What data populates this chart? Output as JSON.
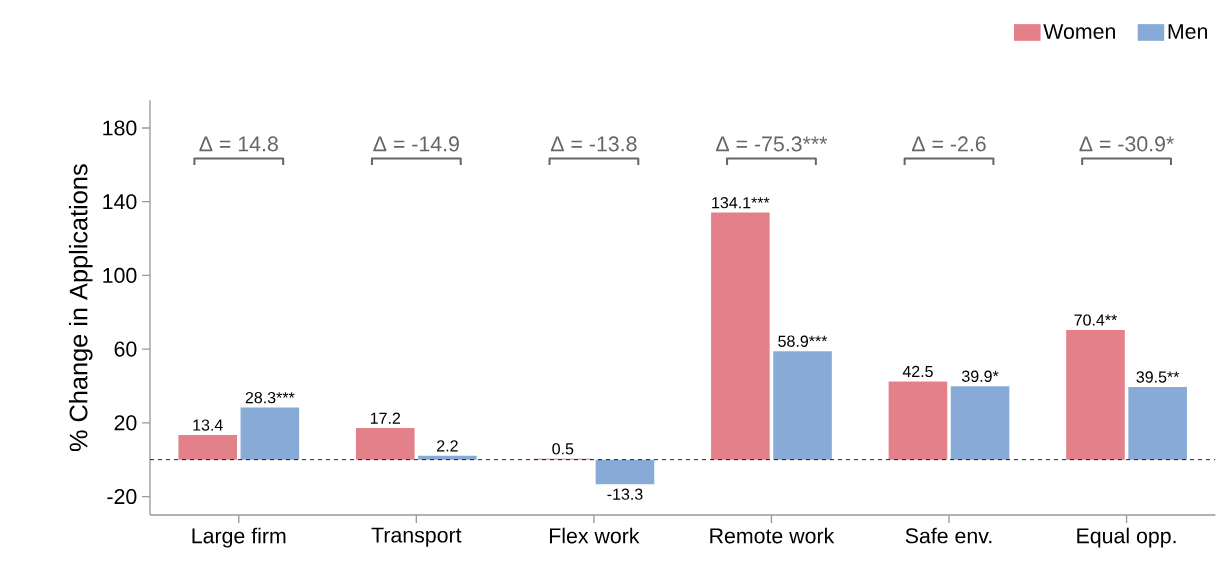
{
  "chart_data": {
    "type": "bar",
    "ylabel": "% Change in Applications",
    "categories": [
      "Large firm",
      "Transport",
      "Flex work",
      "Remote work",
      "Safe env.",
      "Equal opp."
    ],
    "series": [
      {
        "name": "Women",
        "color": "#e3808a",
        "values": [
          13.4,
          17.2,
          0.5,
          134.1,
          42.5,
          70.4
        ],
        "value_labels": [
          "13.4",
          "17.2",
          "0.5",
          "134.1***",
          "42.5",
          "70.4**"
        ]
      },
      {
        "name": "Men",
        "color": "#87abd6",
        "values": [
          28.3,
          2.2,
          -13.3,
          58.9,
          39.9,
          39.5
        ],
        "value_labels": [
          "28.3***",
          "2.2",
          "-13.3",
          "58.9***",
          "39.9*",
          "39.5**"
        ]
      }
    ],
    "ylim": [
      -30,
      195
    ],
    "yticks": [
      -20,
      20,
      60,
      100,
      140,
      180
    ],
    "ref_lines": [
      {
        "axis": "y",
        "value": 0,
        "color": "#000000",
        "line_style": "dashed"
      }
    ],
    "annotations": [
      "Δ = 14.8",
      "Δ = -14.9",
      "Δ = -13.8",
      "Δ = -75.3***",
      "Δ = -2.6",
      "Δ = -30.9*"
    ],
    "grid": false,
    "legend": "top right"
  }
}
